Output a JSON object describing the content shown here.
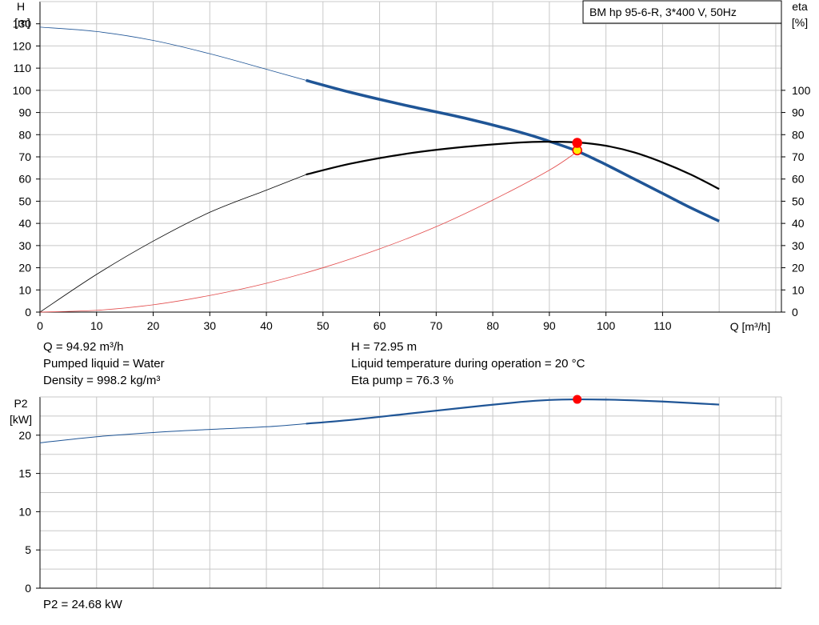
{
  "legend_title": "BM hp 95-6-R, 3*400 V, 50Hz",
  "top_chart": {
    "y_left_label_line1": "H",
    "y_left_label_line2": "[m]",
    "y_right_label_line1": "eta",
    "y_right_label_line2": "[%]",
    "x_label": "Q [m³/h]"
  },
  "bottom_chart": {
    "y_label_line1": "P2",
    "y_label_line2": "[kW]"
  },
  "info": {
    "q": "Q = 94.92 m³/h",
    "liquid": "Pumped liquid = Water",
    "density": "Density = 998.2 kg/m³",
    "h": "H = 72.95 m",
    "temperature": "Liquid temperature during operation = 20 °C",
    "eta": "Eta pump = 76.3 %",
    "p2": "P2 = 24.68 kW"
  },
  "colors": {
    "head": "#1f5596",
    "eta": "#000000",
    "secondary": "#e24a4a",
    "op_point": "#ff0000",
    "op_point_yellow": "#ffee00",
    "grid": "#c8c8c8"
  },
  "chart_data": [
    {
      "type": "line",
      "x_ticks": [
        0,
        10,
        20,
        30,
        40,
        50,
        60,
        70,
        80,
        90,
        100,
        110
      ],
      "y_left_ticks": [
        0,
        10,
        20,
        30,
        40,
        50,
        60,
        70,
        80,
        90,
        100,
        110,
        120,
        130
      ],
      "y_right_ticks": [
        0,
        10,
        20,
        30,
        40,
        50,
        60,
        70,
        80,
        90,
        100
      ],
      "xlim": [
        0,
        131
      ],
      "ylim_left": [
        0,
        140
      ],
      "ylim_right": [
        0,
        140
      ],
      "grid": true,
      "series": [
        {
          "key": "head",
          "axis": "left",
          "x": [
            0,
            10,
            20,
            30,
            40,
            47,
            55,
            65,
            75,
            85,
            90,
            95,
            100,
            105,
            110,
            115,
            120
          ],
          "y": [
            128.5,
            126.5,
            122.5,
            116.5,
            109.5,
            104.5,
            99,
            93,
            87.5,
            81,
            77,
            72.5,
            66.5,
            60,
            53.5,
            47,
            41
          ],
          "bold_from_x": 47
        },
        {
          "key": "eta",
          "axis": "right",
          "x": [
            0,
            10,
            20,
            30,
            40,
            47,
            55,
            65,
            75,
            85,
            90,
            95,
            100,
            105,
            110,
            115,
            120
          ],
          "y": [
            0,
            17,
            32,
            45,
            55,
            62,
            67,
            71.5,
            74.5,
            76.5,
            76.8,
            76.5,
            75,
            72,
            67.5,
            62,
            55.5
          ],
          "bold_from_x": 47
        },
        {
          "key": "secondary",
          "axis": "left",
          "x": [
            0,
            10,
            20,
            30,
            40,
            50,
            60,
            70,
            80,
            90,
            95
          ],
          "y": [
            0,
            0.8,
            3.3,
            7.5,
            13,
            20,
            28.5,
            38.5,
            50.5,
            64,
            72.5
          ]
        }
      ],
      "points": [
        {
          "x": 94.92,
          "y": 72.95,
          "axis": "left",
          "color_key": "op_point_yellow"
        },
        {
          "x": 94.92,
          "y": 76.3,
          "axis": "right",
          "color_key": "op_point"
        }
      ]
    },
    {
      "type": "line",
      "x_ticks": [
        0,
        10,
        20,
        30,
        40,
        50,
        60,
        70,
        80,
        90,
        100,
        110
      ],
      "y_ticks": [
        0,
        5,
        10,
        15,
        20
      ],
      "xlim": [
        0,
        131
      ],
      "ylim": [
        0,
        25
      ],
      "grid": true,
      "series": [
        {
          "key": "p2",
          "x": [
            0,
            10,
            20,
            30,
            40,
            47,
            55,
            65,
            75,
            85,
            90,
            95,
            100,
            105,
            110,
            115,
            120
          ],
          "y": [
            19,
            19.8,
            20.35,
            20.75,
            21.1,
            21.5,
            22,
            22.8,
            23.6,
            24.35,
            24.6,
            24.68,
            24.65,
            24.55,
            24.4,
            24.2,
            24
          ],
          "bold_from_x": 47
        }
      ],
      "points": [
        {
          "x": 94.92,
          "y": 24.68,
          "color_key": "op_point"
        }
      ]
    }
  ]
}
